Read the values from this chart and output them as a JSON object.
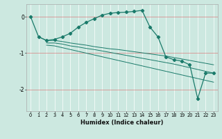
{
  "xlabel": "Humidex (Indice chaleur)",
  "bg_color": "#cce8e0",
  "grid_color": "#ffffff",
  "line_color": "#1a7a6a",
  "xlim": [
    -0.5,
    23.5
  ],
  "ylim": [
    -2.6,
    0.35
  ],
  "yticks": [
    0,
    -1,
    -2
  ],
  "xticks": [
    0,
    1,
    2,
    3,
    4,
    5,
    6,
    7,
    8,
    9,
    10,
    11,
    12,
    13,
    14,
    15,
    16,
    17,
    18,
    19,
    20,
    21,
    22,
    23
  ],
  "main_x": [
    0,
    1,
    2,
    3,
    4,
    5,
    6,
    7,
    8,
    9,
    10,
    11,
    12,
    13,
    14,
    15,
    16,
    17,
    18,
    19,
    20,
    21,
    22,
    23
  ],
  "main_y": [
    0.0,
    -0.55,
    -0.65,
    -0.62,
    -0.55,
    -0.45,
    -0.28,
    -0.15,
    -0.05,
    0.05,
    0.1,
    0.12,
    0.13,
    0.15,
    0.18,
    -0.28,
    -0.55,
    -1.1,
    -1.18,
    -1.22,
    -1.32,
    -2.25,
    -1.55,
    -1.55
  ],
  "line1_x": [
    1,
    2,
    3,
    4,
    5,
    6,
    7,
    8,
    9,
    10,
    11,
    12,
    13,
    14,
    15,
    16,
    17,
    18,
    19,
    20,
    21,
    22,
    23
  ],
  "line1_y": [
    -0.55,
    -0.65,
    -0.65,
    -0.68,
    -0.72,
    -0.75,
    -0.78,
    -0.82,
    -0.85,
    -0.88,
    -0.9,
    -0.93,
    -0.96,
    -0.99,
    -1.02,
    -1.05,
    -1.08,
    -1.12,
    -1.16,
    -1.2,
    -1.24,
    -1.28,
    -1.32
  ],
  "line2_x": [
    2,
    3,
    4,
    5,
    6,
    7,
    8,
    9,
    10,
    11,
    12,
    13,
    14,
    15,
    16,
    17,
    18,
    19,
    20,
    21,
    22,
    23
  ],
  "line2_y": [
    -0.72,
    -0.72,
    -0.75,
    -0.8,
    -0.83,
    -0.87,
    -0.9,
    -0.94,
    -0.98,
    -1.02,
    -1.06,
    -1.1,
    -1.14,
    -1.18,
    -1.22,
    -1.26,
    -1.3,
    -1.35,
    -1.4,
    -1.45,
    -1.5,
    -1.55
  ],
  "line3_x": [
    2,
    3,
    4,
    5,
    6,
    7,
    8,
    9,
    10,
    11,
    12,
    13,
    14,
    15,
    16,
    17,
    18,
    19,
    20,
    21,
    22,
    23
  ],
  "line3_y": [
    -0.78,
    -0.8,
    -0.85,
    -0.9,
    -0.95,
    -1.0,
    -1.05,
    -1.1,
    -1.15,
    -1.2,
    -1.25,
    -1.3,
    -1.35,
    -1.4,
    -1.45,
    -1.5,
    -1.55,
    -1.6,
    -1.65,
    -1.7,
    -1.75,
    -1.8
  ]
}
